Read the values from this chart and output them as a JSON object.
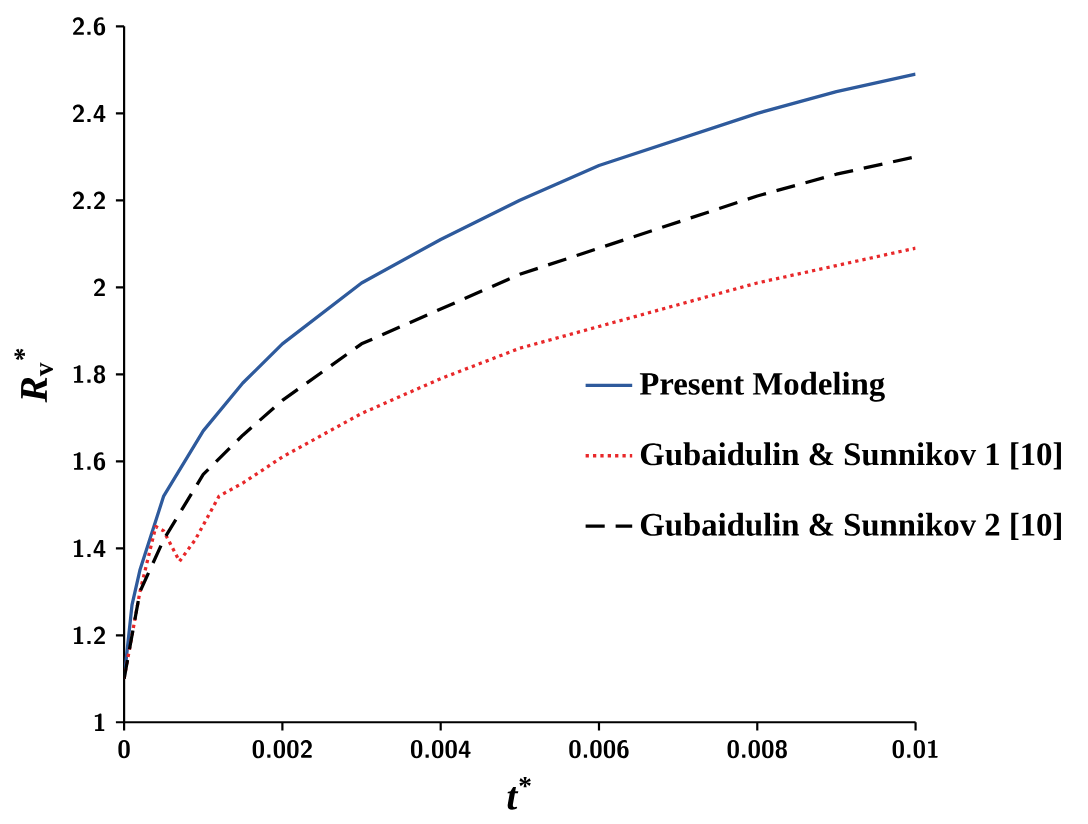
{
  "chart_data": {
    "type": "line",
    "xlabel": "*t*$^{*}$",
    "ylabel": "*R*$_{v}$$^{*}$",
    "xlim": [
      0,
      0.01
    ],
    "ylim": [
      1,
      2.6
    ],
    "xticks": [
      0,
      0.002,
      0.004,
      0.006,
      0.008,
      0.01
    ],
    "yticks": [
      1,
      1.2,
      1.4,
      1.6,
      1.8,
      2,
      2.2,
      2.4,
      2.6
    ],
    "grid": false,
    "legend": "right",
    "marker": "none",
    "series": [
      {
        "name": "Present Modeling",
        "color": "#2e5a9c",
        "line_style": "solid",
        "x": [
          0,
          0.0001,
          0.0002,
          0.0005,
          0.001,
          0.0015,
          0.002,
          0.003,
          0.004,
          0.005,
          0.006,
          0.007,
          0.008,
          0.009,
          0.01
        ],
        "values": [
          1.1,
          1.27,
          1.35,
          1.52,
          1.67,
          1.78,
          1.87,
          2.01,
          2.11,
          2.2,
          2.28,
          2.34,
          2.4,
          2.45,
          2.49
        ]
      },
      {
        "name": "Gubaidulin & Sunnikov 1  [10]",
        "color": "#e8282a",
        "line_style": "dotted",
        "x": [
          0,
          0.0002,
          0.0004,
          0.0005,
          0.0007,
          0.0009,
          0.0012,
          0.0015,
          0.002,
          0.003,
          0.004,
          0.005,
          0.006,
          0.007,
          0.008,
          0.009,
          0.01
        ],
        "values": [
          1.1,
          1.3,
          1.45,
          1.44,
          1.37,
          1.42,
          1.52,
          1.55,
          1.61,
          1.71,
          1.79,
          1.86,
          1.91,
          1.96,
          2.01,
          2.05,
          2.09
        ]
      },
      {
        "name": "Gubaidulin & Sunnikov 2  [10]",
        "color": "#000000",
        "line_style": "dashed",
        "x": [
          0,
          0.0002,
          0.0005,
          0.001,
          0.0015,
          0.002,
          0.003,
          0.004,
          0.005,
          0.006,
          0.007,
          0.008,
          0.009,
          0.01
        ],
        "values": [
          1.1,
          1.3,
          1.42,
          1.57,
          1.66,
          1.74,
          1.87,
          1.95,
          2.03,
          2.09,
          2.15,
          2.21,
          2.26,
          2.3
        ]
      }
    ]
  }
}
